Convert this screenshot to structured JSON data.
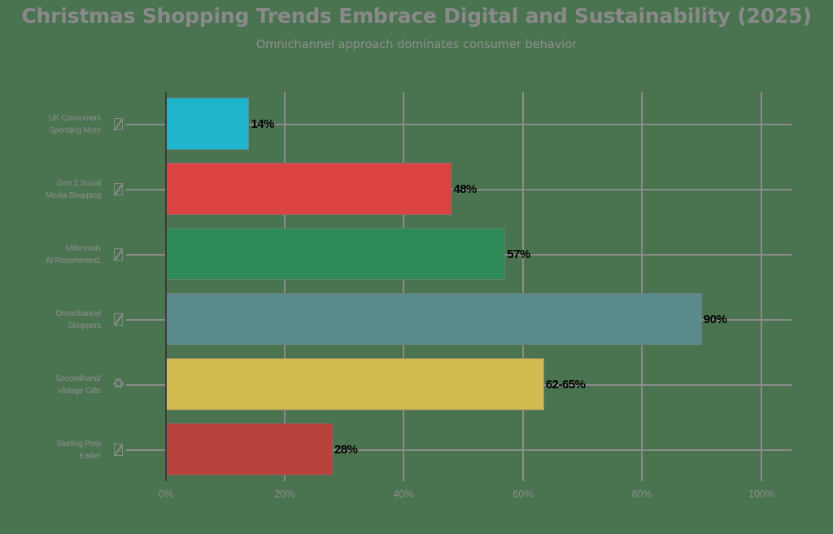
{
  "chart_data": {
    "type": "bar",
    "orientation": "horizontal",
    "title": "Christmas Shopping Trends Embrace Digital and Sustainability (2025)",
    "subtitle": "Omnichannel approach dominates consumer behavior",
    "xlabel": "",
    "ylabel": "",
    "xlim": [
      0,
      100
    ],
    "x_ticks": [
      "0%",
      "20%",
      "40%",
      "60%",
      "80%",
      "100%"
    ],
    "grid": true,
    "legend": null,
    "categories": [
      "UK Consumers Spending More",
      "Gen Z Social Media Shopping",
      "Millennials AI Recommend.",
      "Omnichannel Shoppers",
      "Secondhand/ Vintage Gifts",
      "Starting Prep Earlier"
    ],
    "values": [
      14,
      48,
      57,
      90,
      63.5,
      28
    ],
    "value_labels": [
      "14%",
      "48%",
      "57%",
      "90%",
      "62-65%",
      "28%"
    ],
    "colors": [
      "#1fb5cc",
      "#dc4444",
      "#2e8a57",
      "#5b8a8c",
      "#d4bb50",
      "#b8423c"
    ]
  },
  "header": {
    "title": "Christmas Shopping Trends Embrace Digital and Sustainability (2025)",
    "subtitle": "Omnichannel approach dominates consumer behavior"
  },
  "rows": [
    {
      "line1": "UK Consumers",
      "line2": "Spending More",
      "value": 14,
      "label": "14%",
      "color": "#1fb5cc",
      "icon": "missing-glyph-icon"
    },
    {
      "line1": "Gen Z Social",
      "line2": "Media Shopping",
      "value": 48,
      "label": "48%",
      "color": "#dc4444",
      "icon": "missing-glyph-icon"
    },
    {
      "line1": "Millennials",
      "line2": "AI Recommend.",
      "value": 57,
      "label": "57%",
      "color": "#2e8a57",
      "icon": "missing-glyph-icon"
    },
    {
      "line1": "Omnichannel",
      "line2": "Shoppers",
      "value": 90,
      "label": "90%",
      "color": "#5b8a8c",
      "icon": "missing-glyph-icon"
    },
    {
      "line1": "Secondhand/",
      "line2": "Vintage Gifts",
      "value": 63.5,
      "label": "62-65%",
      "color": "#d4bb50",
      "icon": "recycle-icon",
      "glyph": "♻"
    },
    {
      "line1": "Starting Prep",
      "line2": "Earlier",
      "value": 28,
      "label": "28%",
      "color": "#b8423c",
      "icon": "missing-glyph-icon"
    }
  ],
  "x_axis": {
    "ticks": [
      "0%",
      "20%",
      "40%",
      "60%",
      "80%",
      "100%"
    ]
  },
  "colors": {
    "background": "#4a7350",
    "grid": "#8c8c8c",
    "text": "#8e8e8e"
  }
}
